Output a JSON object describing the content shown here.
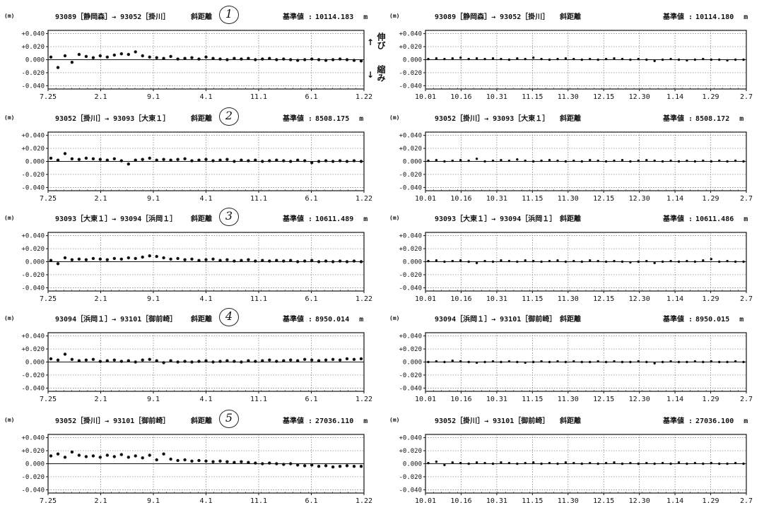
{
  "title": "",
  "header_labels": {
    "unit": "(m)",
    "kind": "斜距離",
    "basis_label": "基準値 :",
    "basis_unit": "m"
  },
  "side_notes": {
    "stretch": "伸び",
    "shrink": "縮み",
    "arrow_up": "↑",
    "arrow_down": "↓"
  },
  "baselines": [
    {
      "number": "1",
      "route": "93089［静岡森］→ 93052［掛川］",
      "basis_left": "10114.183",
      "basis_right": "10114.180"
    },
    {
      "number": "2",
      "route": "93052［掛川］→ 93093［大東１］",
      "basis_left": "8508.175",
      "basis_right": "8508.172"
    },
    {
      "number": "3",
      "route": "93093［大東１］→ 93094［浜岡１］",
      "basis_left": "10611.489",
      "basis_right": "10611.486"
    },
    {
      "number": "4",
      "route": "93094［浜岡１］→ 93101［御前崎］",
      "basis_left": "8950.014",
      "basis_right": "8950.015"
    },
    {
      "number": "5",
      "route": "93052［掛川］→ 93101［御前崎］",
      "basis_left": "27036.110",
      "basis_right": "27036.100"
    }
  ],
  "chart_data": [
    {
      "type": "scatter",
      "panel": "1-left",
      "title": "93089［静岡森］→ 93052［掛川］ 斜距離",
      "ylabel": "(m)",
      "xticks": [
        "7.25",
        "2.1",
        "9.1",
        "4.1",
        "11.1",
        "6.1",
        "1.22"
      ],
      "yticks": [
        "+0.040",
        "+0.020",
        "0.000",
        "-0.020",
        "-0.040"
      ],
      "ylim": [
        -0.045,
        0.045
      ],
      "series": [
        {
          "y": [
            0.004,
            -0.012,
            0.006,
            -0.004,
            0.008,
            0.005,
            0.003,
            0.006,
            0.004,
            0.007,
            0.009,
            0.008,
            0.012,
            0.006,
            0.004,
            0.003,
            0.002,
            0.005,
            0.001,
            0.002,
            0.003,
            0.001,
            0.004,
            0.002,
            0.001,
            0.0,
            0.002,
            0.001,
            0.002,
            0.0,
            0.001,
            0.002,
            0.0,
            0.001,
            0.0,
            -0.001,
            0.0,
            0.001,
            0.0,
            -0.001,
            0.0,
            0.001,
            0.0,
            -0.001,
            -0.002
          ]
        }
      ]
    },
    {
      "type": "scatter",
      "panel": "1-right",
      "title": "93089［静岡森］→ 93052［掛川］ 斜距離",
      "ylabel": "(m)",
      "xticks": [
        "10.01",
        "10.16",
        "10.31",
        "11.15",
        "11.30",
        "12.15",
        "12.30",
        "1.14",
        "1.29",
        "2.7"
      ],
      "yticks": [
        "+0.040",
        "+0.020",
        "0.000",
        "-0.020",
        "-0.040"
      ],
      "ylim": [
        -0.045,
        0.045
      ],
      "series": [
        {
          "y": [
            0.001,
            0.002,
            0.001,
            0.002,
            0.003,
            0.001,
            0.002,
            0.001,
            0.002,
            0.001,
            0.0,
            0.002,
            0.001,
            0.003,
            0.001,
            0.0,
            0.001,
            0.002,
            0.001,
            0.0,
            0.001,
            0.0,
            0.001,
            0.002,
            0.001,
            0.0,
            0.001,
            0.0,
            -0.002,
            0.0,
            0.001,
            0.0,
            -0.001,
            0.0,
            0.001,
            0.0,
            0.0,
            -0.001,
            0.0,
            0.0
          ]
        }
      ]
    },
    {
      "type": "scatter",
      "panel": "2-left",
      "title": "93052［掛川］→ 93093［大東１］ 斜距離",
      "ylabel": "(m)",
      "xticks": [
        "7.25",
        "2.1",
        "9.1",
        "4.1",
        "11.1",
        "6.1",
        "1.22"
      ],
      "yticks": [
        "+0.040",
        "+0.020",
        "0.000",
        "-0.020",
        "-0.040"
      ],
      "ylim": [
        -0.045,
        0.045
      ],
      "series": [
        {
          "y": [
            0.005,
            0.002,
            0.012,
            0.004,
            0.003,
            0.005,
            0.004,
            0.003,
            0.002,
            0.004,
            0.001,
            -0.004,
            0.002,
            0.003,
            0.005,
            0.002,
            0.003,
            0.002,
            0.003,
            0.004,
            0.001,
            0.002,
            0.003,
            0.001,
            0.002,
            0.003,
            0.0,
            0.002,
            0.001,
            0.002,
            0.0,
            0.001,
            0.002,
            0.001,
            0.0,
            0.002,
            0.001,
            -0.002,
            0.0,
            0.001,
            0.0,
            0.001,
            0.0,
            0.001,
            0.0
          ]
        }
      ]
    },
    {
      "type": "scatter",
      "panel": "2-right",
      "title": "93052［掛川］→ 93093［大東１］ 斜距離",
      "ylabel": "(m)",
      "xticks": [
        "10.01",
        "10.16",
        "10.31",
        "11.15",
        "11.30",
        "12.15",
        "12.30",
        "1.14",
        "1.29",
        "2.7"
      ],
      "yticks": [
        "+0.040",
        "+0.020",
        "0.000",
        "-0.020",
        "-0.040"
      ],
      "ylim": [
        -0.045,
        0.045
      ],
      "series": [
        {
          "y": [
            0.001,
            0.002,
            0.0,
            0.001,
            0.002,
            0.001,
            0.004,
            0.0,
            0.001,
            0.002,
            0.001,
            0.003,
            0.001,
            0.0,
            0.001,
            0.002,
            0.001,
            0.0,
            0.001,
            0.0,
            0.002,
            0.001,
            0.0,
            0.001,
            0.002,
            0.0,
            0.001,
            0.002,
            0.001,
            0.0,
            0.001,
            0.0,
            0.001,
            0.0,
            0.001,
            0.0,
            0.001,
            0.0,
            0.001,
            0.0
          ]
        }
      ]
    },
    {
      "type": "scatter",
      "panel": "3-left",
      "title": "93093［大東１］→ 93094［浜岡１］ 斜距離",
      "ylabel": "(m)",
      "xticks": [
        "7.25",
        "2.1",
        "9.1",
        "4.1",
        "11.1",
        "6.1",
        "1.22"
      ],
      "yticks": [
        "+0.040",
        "+0.020",
        "0.000",
        "-0.020",
        "-0.040"
      ],
      "ylim": [
        -0.045,
        0.045
      ],
      "series": [
        {
          "y": [
            0.002,
            -0.003,
            0.006,
            0.003,
            0.004,
            0.003,
            0.005,
            0.004,
            0.003,
            0.005,
            0.004,
            0.006,
            0.005,
            0.007,
            0.009,
            0.008,
            0.006,
            0.004,
            0.005,
            0.003,
            0.004,
            0.002,
            0.003,
            0.004,
            0.002,
            0.003,
            0.001,
            0.002,
            0.003,
            0.001,
            0.002,
            0.001,
            0.002,
            0.001,
            0.002,
            0.0,
            0.001,
            0.002,
            0.0,
            0.001,
            0.0,
            0.001,
            0.0,
            0.001,
            0.0
          ]
        }
      ]
    },
    {
      "type": "scatter",
      "panel": "3-right",
      "title": "93093［大東１］→ 93094［浜岡１］ 斜距離",
      "ylabel": "(m)",
      "xticks": [
        "10.01",
        "10.16",
        "10.31",
        "11.15",
        "11.30",
        "12.15",
        "12.30",
        "1.14",
        "1.29",
        "2.7"
      ],
      "yticks": [
        "+0.040",
        "+0.020",
        "0.000",
        "-0.020",
        "-0.040"
      ],
      "ylim": [
        -0.045,
        0.045
      ],
      "series": [
        {
          "y": [
            0.001,
            0.002,
            0.0,
            0.001,
            0.002,
            0.0,
            -0.002,
            0.001,
            0.0,
            0.002,
            0.001,
            0.0,
            0.002,
            0.001,
            0.0,
            0.001,
            0.002,
            0.0,
            0.001,
            0.0,
            0.002,
            0.001,
            0.0,
            0.001,
            0.0,
            -0.001,
            0.0,
            0.001,
            -0.002,
            0.0,
            0.001,
            0.0,
            0.001,
            0.0,
            0.002,
            0.004,
            0.0,
            0.001,
            0.0,
            0.0
          ]
        }
      ]
    },
    {
      "type": "scatter",
      "panel": "4-left",
      "title": "93094［浜岡１］→ 93101［御前崎］ 斜距離",
      "ylabel": "(m)",
      "xticks": [
        "7.25",
        "2.1",
        "9.1",
        "4.1",
        "11.1",
        "6.1",
        "1.22"
      ],
      "yticks": [
        "+0.040",
        "+0.020",
        "0.000",
        "-0.020",
        "-0.040"
      ],
      "ylim": [
        -0.045,
        0.045
      ],
      "series": [
        {
          "y": [
            0.005,
            0.003,
            0.012,
            0.004,
            0.002,
            0.003,
            0.004,
            0.001,
            0.002,
            0.003,
            0.001,
            0.002,
            0.0,
            0.003,
            0.004,
            0.002,
            -0.001,
            0.002,
            0.0,
            0.001,
            0.0,
            0.001,
            0.002,
            0.0,
            0.001,
            0.002,
            0.001,
            0.0,
            0.002,
            0.001,
            0.002,
            0.003,
            0.001,
            0.002,
            0.003,
            0.002,
            0.004,
            0.003,
            0.002,
            0.003,
            0.004,
            0.003,
            0.005,
            0.004,
            0.005
          ]
        }
      ]
    },
    {
      "type": "scatter",
      "panel": "4-right",
      "title": "93094［浜岡１］→ 93101［御前崎］ 斜距離",
      "ylabel": "(m)",
      "xticks": [
        "10.01",
        "10.16",
        "10.31",
        "11.15",
        "11.30",
        "12.15",
        "12.30",
        "1.14",
        "1.29",
        "2.7"
      ],
      "yticks": [
        "+0.040",
        "+0.020",
        "0.000",
        "-0.020",
        "-0.040"
      ],
      "ylim": [
        -0.045,
        0.045
      ],
      "series": [
        {
          "y": [
            0.0,
            0.001,
            0.0,
            0.002,
            0.001,
            0.0,
            -0.001,
            0.0,
            0.001,
            0.0,
            0.001,
            0.0,
            -0.001,
            0.0,
            0.001,
            0.0,
            0.001,
            0.0,
            0.001,
            0.0,
            0.0,
            0.001,
            0.0,
            0.001,
            0.0,
            0.0,
            0.001,
            0.0,
            -0.002,
            0.0,
            0.001,
            0.0,
            0.0,
            0.001,
            0.0,
            0.001,
            0.0,
            0.0,
            0.001,
            0.0
          ]
        }
      ]
    },
    {
      "type": "scatter",
      "panel": "5-left",
      "title": "93052［掛川］→ 93101［御前崎］ 斜距離",
      "ylabel": "(m)",
      "xticks": [
        "7.25",
        "2.1",
        "9.1",
        "4.1",
        "11.1",
        "6.1",
        "1.22"
      ],
      "yticks": [
        "+0.040",
        "+0.020",
        "0.000",
        "-0.020",
        "-0.040"
      ],
      "ylim": [
        -0.045,
        0.045
      ],
      "series": [
        {
          "y": [
            0.012,
            0.015,
            0.01,
            0.018,
            0.013,
            0.011,
            0.012,
            0.01,
            0.013,
            0.011,
            0.014,
            0.01,
            0.012,
            0.009,
            0.013,
            0.006,
            0.015,
            0.007,
            0.005,
            0.006,
            0.004,
            0.005,
            0.004,
            0.003,
            0.004,
            0.003,
            0.002,
            0.003,
            0.002,
            0.001,
            0.0,
            0.001,
            0.0,
            -0.001,
            0.0,
            -0.002,
            -0.003,
            -0.002,
            -0.004,
            -0.003,
            -0.005,
            -0.004,
            -0.003,
            -0.004,
            -0.004
          ]
        }
      ]
    },
    {
      "type": "scatter",
      "panel": "5-right",
      "title": "93052［掛川］→ 93101［御前崎］ 斜距離",
      "ylabel": "(m)",
      "xticks": [
        "10.01",
        "10.16",
        "10.31",
        "11.15",
        "11.30",
        "12.15",
        "12.30",
        "1.14",
        "1.29",
        "2.7"
      ],
      "yticks": [
        "+0.040",
        "+0.020",
        "0.000",
        "-0.020",
        "-0.040"
      ],
      "ylim": [
        -0.045,
        0.045
      ],
      "series": [
        {
          "y": [
            0.001,
            0.003,
            -0.002,
            0.002,
            0.001,
            0.0,
            0.002,
            0.001,
            0.0,
            0.002,
            0.001,
            0.0,
            0.001,
            0.002,
            0.0,
            0.001,
            0.0,
            0.002,
            0.001,
            0.0,
            0.001,
            0.0,
            0.001,
            0.002,
            0.0,
            0.001,
            0.0,
            0.001,
            0.0,
            0.001,
            0.0,
            0.002,
            0.0,
            0.001,
            0.0,
            0.001,
            0.0,
            0.0,
            0.001,
            0.0
          ]
        }
      ]
    }
  ]
}
